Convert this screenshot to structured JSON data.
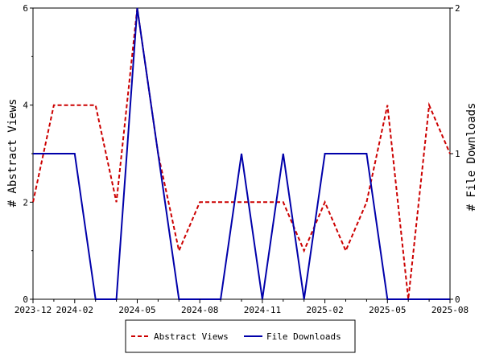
{
  "chart_data": {
    "type": "line",
    "title": "",
    "xlabel": "",
    "ylabel": "# Abstract Views",
    "y2label": "# File Downloads",
    "x": [
      "2023-12",
      "2024-01",
      "2024-02",
      "2024-03",
      "2024-04",
      "2024-05",
      "2024-06",
      "2024-07",
      "2024-08",
      "2024-09",
      "2024-10",
      "2024-11",
      "2024-12",
      "2025-01",
      "2025-02",
      "2025-03",
      "2025-04",
      "2025-05",
      "2025-06",
      "2025-07",
      "2025-08"
    ],
    "x_ticks": [
      "2023-12",
      "2024-02",
      "2024-05",
      "2024-08",
      "2024-11",
      "2025-02",
      "2025-05",
      "2025-08"
    ],
    "ylim": [
      0,
      6
    ],
    "y_ticks": [
      "0",
      "2",
      "4",
      "6"
    ],
    "y2lim": [
      0,
      2
    ],
    "y2_ticks": [
      "0",
      "1",
      "2"
    ],
    "grid": false,
    "legend_position": "bottom",
    "series": [
      {
        "name": "Abstract Views",
        "axis": "left",
        "color": "#cc0000",
        "style": "dashed",
        "values": [
          2,
          4,
          4,
          4,
          2,
          6,
          3,
          1,
          2,
          2,
          2,
          2,
          2,
          1,
          2,
          1,
          2,
          4,
          0,
          4,
          3
        ]
      },
      {
        "name": "File Downloads",
        "axis": "right",
        "color": "#0000aa",
        "style": "solid",
        "values": [
          1,
          1,
          1,
          0,
          0,
          2,
          1,
          0,
          0,
          0,
          1,
          0,
          1,
          0,
          1,
          1,
          1,
          0,
          0,
          0,
          0
        ]
      }
    ]
  }
}
